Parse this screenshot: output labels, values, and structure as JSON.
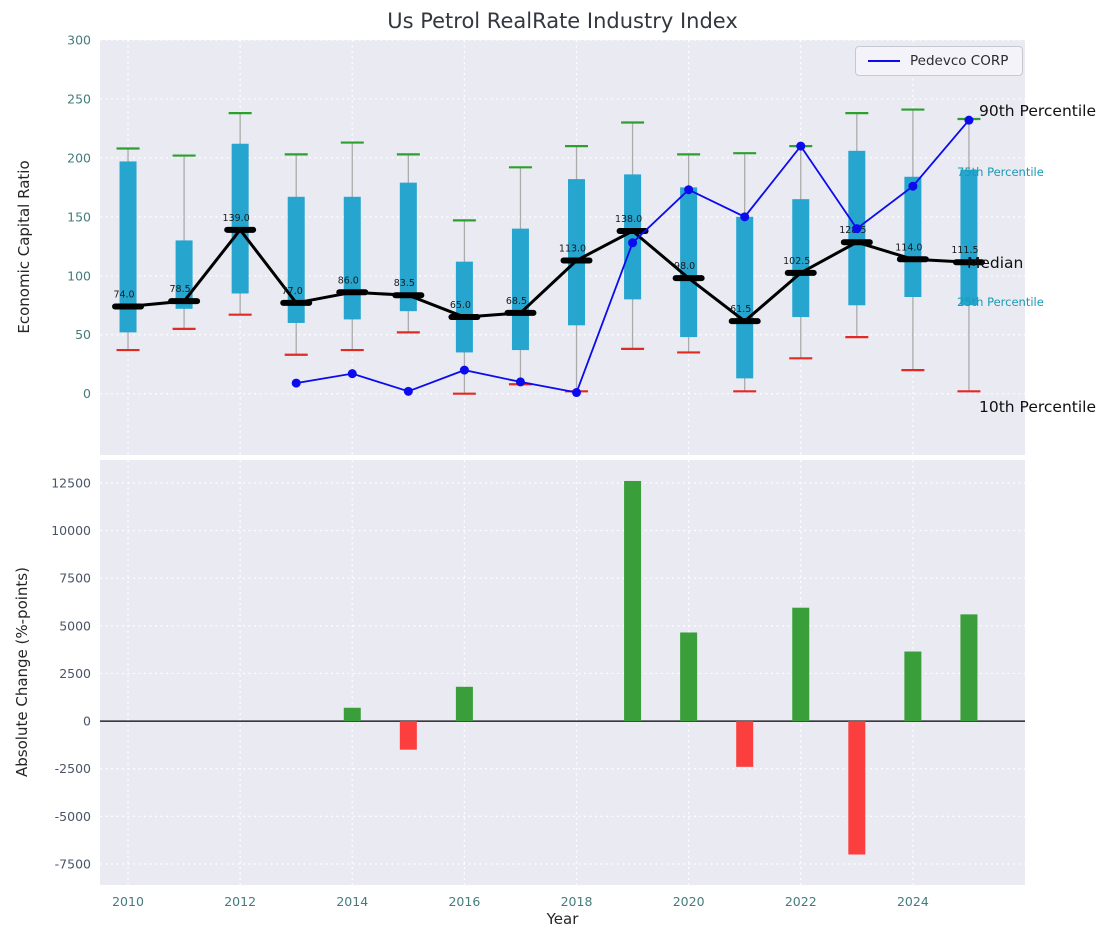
{
  "figure": {
    "title": "Us Petrol RealRate Industry Index",
    "xlabel": "Year"
  },
  "annotations": [
    {
      "id": "p90",
      "text": "90th Percentile",
      "value": 239,
      "style": "black"
    },
    {
      "id": "p75",
      "text": "75th Percentile",
      "value": 188,
      "style": "cyan"
    },
    {
      "id": "median",
      "text": "Median",
      "value": 110,
      "style": "black"
    },
    {
      "id": "p25",
      "text": "25th Percentile",
      "value": 78,
      "style": "cyan"
    },
    {
      "id": "p10",
      "text": "10th Percentile",
      "value": -12,
      "style": "black"
    }
  ],
  "colors": {
    "plot_bg": "#eaeaf2",
    "grid": "#ffffff",
    "box": "#26a5cf",
    "cap_high": "#2ca02c",
    "cap_low": "#e32a22",
    "whisker": "#ababab",
    "median": "#000000",
    "company": "#0b0bee",
    "bar_pos": "#3a9e3a",
    "bar_neg": "#fb3e3e",
    "tick_teal": "#447c7c",
    "tick_slate": "#4a5568",
    "median_label": "#1a1a1a"
  },
  "chart_data": [
    {
      "type": "box-line",
      "title": "Us Petrol RealRate Industry Index",
      "ylabel": "Economic Capital Ratio",
      "xlabel": "Year",
      "ylim": [
        -52,
        300
      ],
      "yticks": [
        0,
        50,
        100,
        150,
        200,
        250,
        300
      ],
      "xlim": [
        2009.5,
        2026
      ],
      "xticks": [
        2010,
        2012,
        2014,
        2016,
        2018,
        2020,
        2022,
        2024
      ],
      "years": [
        2010,
        2011,
        2012,
        2013,
        2014,
        2015,
        2016,
        2017,
        2018,
        2019,
        2020,
        2021,
        2022,
        2023,
        2024,
        2025
      ],
      "p90": [
        208,
        202,
        238,
        203,
        213,
        203,
        147,
        192,
        210,
        230,
        203,
        204,
        210,
        238,
        241,
        233
      ],
      "p75": [
        197,
        130,
        212,
        167,
        167,
        179,
        112,
        140,
        182,
        186,
        175,
        150,
        165,
        206,
        184,
        190
      ],
      "median": [
        74,
        78.5,
        139,
        77,
        86,
        83.5,
        65,
        68.5,
        113,
        138,
        98,
        61.5,
        102.5,
        128.5,
        114,
        111.5
      ],
      "p25": [
        52,
        72,
        85,
        60,
        63,
        70,
        35,
        37,
        58,
        80,
        48,
        13,
        65,
        75,
        82,
        75
      ],
      "p10": [
        37,
        55,
        67,
        33,
        37,
        52,
        0,
        8,
        2,
        38,
        35,
        2,
        30,
        48,
        20,
        2
      ],
      "legend_position": "upper right",
      "grid": true,
      "company": {
        "name": "Pedevco CORP",
        "years": [
          2013,
          2014,
          2015,
          2016,
          2017,
          2018,
          2019,
          2020,
          2021,
          2022,
          2023,
          2024,
          2025
        ],
        "values": [
          9,
          17,
          2,
          20,
          10,
          1,
          128,
          173,
          150,
          210,
          140,
          176,
          232
        ]
      }
    },
    {
      "type": "bar",
      "ylabel": "Absolute Change (%-points)",
      "xlabel": "Year",
      "ylim": [
        -8600,
        13700
      ],
      "yticks": [
        -7500,
        -5000,
        -2500,
        0,
        2500,
        5000,
        7500,
        10000,
        12500
      ],
      "grid": true,
      "years": [
        2014,
        2015,
        2016,
        2019,
        2020,
        2021,
        2022,
        2023,
        2024,
        2025
      ],
      "values": [
        700,
        -1500,
        1800,
        12600,
        4650,
        -2400,
        5950,
        -7000,
        3650,
        5600
      ]
    }
  ]
}
